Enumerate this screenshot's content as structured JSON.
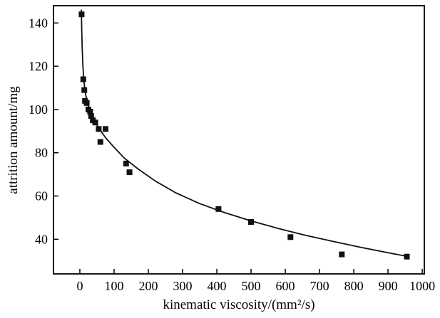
{
  "chart_data": {
    "type": "scatter",
    "title": "",
    "xlabel": "kinematic viscosity/(mm²/s)",
    "ylabel": "attrition amount/mg",
    "xlim": [
      -77,
      1006
    ],
    "ylim": [
      24,
      148
    ],
    "x_ticks": [
      0,
      100,
      200,
      300,
      400,
      500,
      600,
      700,
      800,
      900,
      1000
    ],
    "y_ticks": [
      40,
      60,
      80,
      100,
      120,
      140
    ],
    "grid": false,
    "legend": false,
    "marker": "filled-square",
    "colors": {
      "background": "#ffffff",
      "axis": "#000000",
      "marker": "#111111",
      "curve": "#111111"
    },
    "points": [
      [
        5,
        144
      ],
      [
        10,
        114
      ],
      [
        13,
        109
      ],
      [
        15,
        104
      ],
      [
        20,
        103
      ],
      [
        25,
        100
      ],
      [
        30,
        99
      ],
      [
        33,
        97
      ],
      [
        38,
        95
      ],
      [
        45,
        94
      ],
      [
        55,
        91
      ],
      [
        60,
        85
      ],
      [
        75,
        91
      ],
      [
        135,
        75
      ],
      [
        145,
        71
      ],
      [
        405,
        54
      ],
      [
        500,
        48
      ],
      [
        615,
        41
      ],
      [
        765,
        33
      ],
      [
        955,
        32
      ]
    ],
    "fit_curve": [
      [
        4.5,
        146
      ],
      [
        5.5,
        137
      ],
      [
        7,
        128
      ],
      [
        9,
        120
      ],
      [
        12,
        113
      ],
      [
        16,
        107.5
      ],
      [
        22,
        103
      ],
      [
        30,
        99
      ],
      [
        40,
        95.5
      ],
      [
        55,
        91.5
      ],
      [
        75,
        87
      ],
      [
        100,
        82.5
      ],
      [
        130,
        77.5
      ],
      [
        170,
        72.5
      ],
      [
        220,
        67
      ],
      [
        280,
        61.5
      ],
      [
        350,
        56.5
      ],
      [
        420,
        52.5
      ],
      [
        500,
        48.5
      ],
      [
        580,
        45
      ],
      [
        660,
        41.8
      ],
      [
        740,
        39
      ],
      [
        820,
        36.3
      ],
      [
        900,
        33.8
      ],
      [
        960,
        32
      ]
    ]
  }
}
